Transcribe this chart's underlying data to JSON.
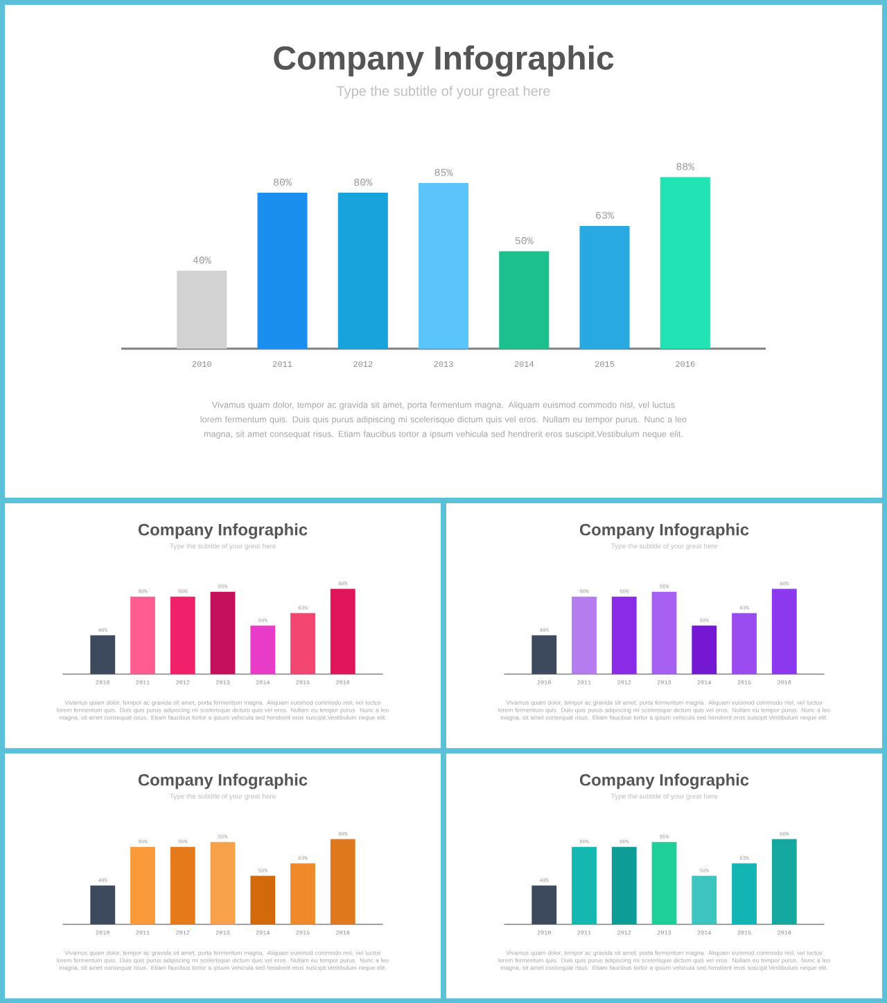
{
  "chart_data": [
    {
      "type": "bar",
      "title": "Company Infographic",
      "subtitle": "Type the subtitle of your great here",
      "categories": [
        "2010",
        "2011",
        "2012",
        "2013",
        "2014",
        "2015",
        "2016"
      ],
      "values": [
        40,
        80,
        80,
        85,
        50,
        63,
        88
      ],
      "value_labels": [
        "40%",
        "80%",
        "80%",
        "85%",
        "50%",
        "63%",
        "88%"
      ],
      "colors": [
        "#d2d2d2",
        "#1b8ff0",
        "#19a3dc",
        "#5bc4fa",
        "#1cbf8e",
        "#29a9e2",
        "#22e3b4"
      ],
      "annotations": [
        "Vivamus quam dolor, tempor ac gravida sit amet, porta fermentum magna. Aliquam euismod commodo nisl, vel luctus lorem fermentum quis. Duis quis purus adipiscing mi scelerisque dictum quis vel eros. Nullam eu tempor purus. Nunc a leo magna, sit amet consequat risus. Etiam faucibus tortor a ipsum vehicula sed hendrerit eros suscipit.Vestibulum neque elit."
      ]
    },
    {
      "type": "bar",
      "title": "Company Infographic",
      "subtitle": "Type the subtitle of your great here",
      "categories": [
        "2010",
        "2011",
        "2012",
        "2013",
        "2014",
        "2015",
        "2016"
      ],
      "values": [
        40,
        80,
        80,
        85,
        50,
        63,
        88
      ],
      "value_labels": [
        "40%",
        "80%",
        "80%",
        "85%",
        "50%",
        "63%",
        "88%"
      ],
      "colors": [
        "#3d4a5e",
        "#ff5c8f",
        "#f0206a",
        "#c4105c",
        "#e83cc8",
        "#f2456f",
        "#e0145a"
      ],
      "annotations": [
        "Vivamus quam dolor, tempor ac gravida sit amet, porta fermentum magna. Aliquam euismod commodo nisl, vel luctus lorem fermentum quis. Duis quis purus adipiscing mi scelerisque dictum quis vel eros. Nullam eu tempor purus. Nunc a leo magna, sit amet consequat risus. Etiam faucibus tortor a ipsum vehicula sed hendrerit eros suscipit.Vestibulum neque elit."
      ]
    },
    {
      "type": "bar",
      "title": "Company Infographic",
      "subtitle": "Type the subtitle of your great here",
      "categories": [
        "2010",
        "2011",
        "2012",
        "2013",
        "2014",
        "2015",
        "2016"
      ],
      "values": [
        40,
        80,
        80,
        85,
        50,
        63,
        88
      ],
      "value_labels": [
        "40%",
        "80%",
        "80%",
        "85%",
        "50%",
        "63%",
        "88%"
      ],
      "colors": [
        "#3d4a5e",
        "#b57cf0",
        "#8a2be8",
        "#a860f2",
        "#7418d4",
        "#9a4cf0",
        "#8c38ee"
      ],
      "annotations": [
        "Vivamus quam dolor, tempor ac gravida sit amet, porta fermentum magna. Aliquam euismod commodo nisl, vel luctus lorem fermentum quis. Duis quis purus adipiscing mi scelerisque dictum quis vel eros. Nullam eu tempor purus. Nunc a leo magna, sit amet consequat risus. Etiam faucibus tortor a ipsum vehicula sed hendrerit eros suscipit.Vestibulum neque elit."
      ]
    },
    {
      "type": "bar",
      "title": "Company Infographic",
      "subtitle": "Type the subtitle of your great here",
      "categories": [
        "2010",
        "2011",
        "2012",
        "2013",
        "2014",
        "2015",
        "2016"
      ],
      "values": [
        40,
        80,
        80,
        85,
        50,
        63,
        88
      ],
      "value_labels": [
        "40%",
        "80%",
        "80%",
        "85%",
        "50%",
        "63%",
        "88%"
      ],
      "colors": [
        "#3d4a5e",
        "#fb9a3a",
        "#e57a1a",
        "#f7a24a",
        "#d26a0c",
        "#ee8a2a",
        "#e0781e"
      ],
      "annotations": [
        "Vivamus quam dolor, tempor ac gravida sit amet, porta fermentum magna. Aliquam euismod commodo nisl, vel luctus lorem fermentum quis. Duis quis purus adipiscing mi scelerisque dictum quis vel eros. Nullam eu tempor purus. Nunc a leo magna, sit amet consequat risus. Etiam faucibus tortor a ipsum vehicula sed hendrerit eros suscipit.Vestibulum neque elit."
      ]
    },
    {
      "type": "bar",
      "title": "Company Infographic",
      "subtitle": "Type the subtitle of your great here",
      "categories": [
        "2010",
        "2011",
        "2012",
        "2013",
        "2014",
        "2015",
        "2016"
      ],
      "values": [
        40,
        80,
        80,
        85,
        50,
        63,
        88
      ],
      "value_labels": [
        "40%",
        "80%",
        "80%",
        "85%",
        "50%",
        "63%",
        "88%"
      ],
      "colors": [
        "#3d4a5e",
        "#15b8b0",
        "#0e9c96",
        "#1ecf9a",
        "#3cc4c0",
        "#12b4b4",
        "#14a8a0"
      ],
      "annotations": [
        "Vivamus quam dolor, tempor ac gravida sit amet, porta fermentum magna. Aliquam euismod commodo nisl, vel luctus lorem fermentum quis. Duis quis purus adipiscing mi scelerisque dictum quis vel eros. Nullam eu tempor purus. Nunc a leo magna, sit amet consequat risus. Etiam faucibus tortor a ipsum vehicula sed hendrerit eros suscipit.Vestibulum neque elit."
      ]
    }
  ]
}
